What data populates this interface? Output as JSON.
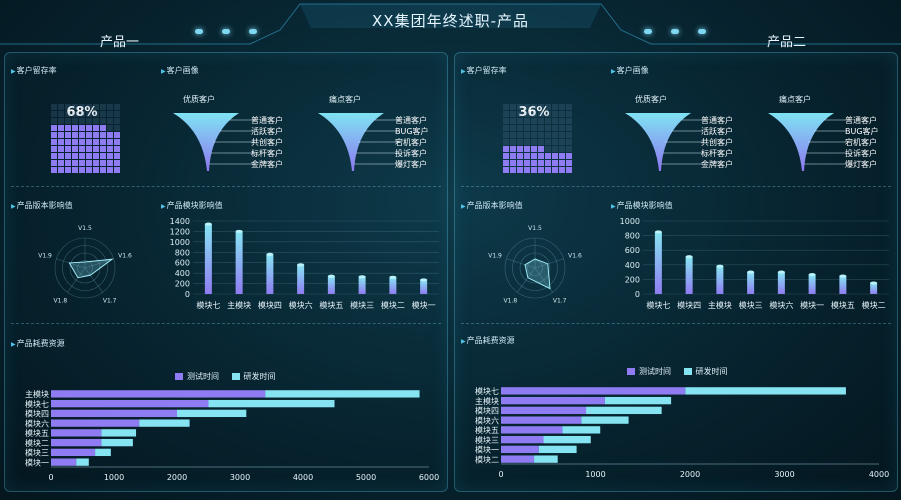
{
  "header": {
    "title": "XX集团年终述职-产品",
    "left_name": "产品一",
    "right_name": "产品二"
  },
  "colors": {
    "purple": "#8f7cf2",
    "cyan": "#86e4f2",
    "accent": "#4fc3e6"
  },
  "panels": [
    {
      "retention_title": "客户留存率",
      "retention_pct_text": "68%",
      "retention_value": 0.68,
      "portrait_title": "客户画像",
      "funnels": [
        {
          "title": "优质客户",
          "labels": [
            "普通客户",
            "活跃客户",
            "共创客户",
            "标杆客户",
            "金牌客户"
          ]
        },
        {
          "title": "痛点客户",
          "labels": [
            "普通客户",
            "BUG客户",
            "宕机客户",
            "投诉客户",
            "爆灯客户"
          ]
        }
      ],
      "version_title": "产品版本影响值",
      "module_title": "产品模块影响值",
      "resource_title": "产品耗费资源"
    },
    {
      "retention_title": "客户留存率",
      "retention_pct_text": "36%",
      "retention_value": 0.36,
      "portrait_title": "客户画像",
      "funnels": [
        {
          "title": "优质客户",
          "labels": [
            "普通客户",
            "活跃客户",
            "共创客户",
            "标杆客户",
            "金牌客户"
          ]
        },
        {
          "title": "痛点客户",
          "labels": [
            "普通客户",
            "BUG客户",
            "宕机客户",
            "投诉客户",
            "爆灯客户"
          ]
        }
      ],
      "version_title": "产品版本影响值",
      "module_title": "产品模块影响值",
      "resource_title": "产品耗费资源"
    }
  ],
  "chart_data": [
    {
      "type": "radar",
      "axes": [
        "V1.5",
        "V1.6",
        "V1.7",
        "V1.8",
        "V1.9"
      ],
      "values": [
        0.2,
        0.95,
        0.3,
        0.4,
        0.55
      ],
      "max": 1
    },
    {
      "type": "bar",
      "categories": [
        "模块七",
        "主模块",
        "模块四",
        "模块六",
        "模块五",
        "模块三",
        "模块二",
        "模块一"
      ],
      "values": [
        1340,
        1200,
        760,
        560,
        340,
        330,
        320,
        270
      ],
      "ylim": [
        0,
        1400
      ],
      "yticks": [
        0,
        200,
        400,
        600,
        800,
        1000,
        1200,
        1400
      ],
      "grid": true
    },
    {
      "type": "bar",
      "orientation": "horizontal",
      "stacked": true,
      "categories": [
        "主模块",
        "模块七",
        "模块四",
        "模块六",
        "模块五",
        "模块二",
        "模块三",
        "模块一"
      ],
      "series": [
        {
          "name": "测试时间",
          "values": [
            3400,
            2500,
            2000,
            1400,
            800,
            800,
            700,
            400
          ]
        },
        {
          "name": "研发时间",
          "values": [
            2450,
            2000,
            1100,
            800,
            550,
            500,
            250,
            200
          ]
        }
      ],
      "xlim": [
        0,
        6000
      ],
      "xticks": [
        0,
        1000,
        2000,
        3000,
        4000,
        5000,
        6000
      ],
      "legend": "top"
    },
    {
      "type": "radar",
      "axes": [
        "V1.5",
        "V1.6",
        "V1.7",
        "V1.8",
        "V1.9"
      ],
      "values": [
        0.3,
        0.45,
        0.85,
        0.4,
        0.35
      ],
      "max": 1
    },
    {
      "type": "bar",
      "categories": [
        "模块七",
        "模块四",
        "主模块",
        "模块三",
        "模块六",
        "模块一",
        "模块五",
        "模块二"
      ],
      "values": [
        850,
        510,
        380,
        300,
        300,
        265,
        245,
        150
      ],
      "ylim": [
        0,
        1000
      ],
      "yticks": [
        0,
        200,
        400,
        600,
        800,
        1000
      ],
      "grid": true
    },
    {
      "type": "bar",
      "orientation": "horizontal",
      "stacked": true,
      "categories": [
        "模块七",
        "主模块",
        "模块四",
        "模块六",
        "模块五",
        "模块三",
        "模块一",
        "模块二"
      ],
      "series": [
        {
          "name": "测试时间",
          "values": [
            1950,
            1100,
            900,
            850,
            650,
            450,
            400,
            350
          ]
        },
        {
          "name": "研发时间",
          "values": [
            1700,
            700,
            800,
            500,
            400,
            500,
            400,
            250
          ]
        }
      ],
      "xlim": [
        0,
        4000
      ],
      "xticks": [
        0,
        1000,
        2000,
        3000,
        4000
      ],
      "legend": "top"
    }
  ]
}
